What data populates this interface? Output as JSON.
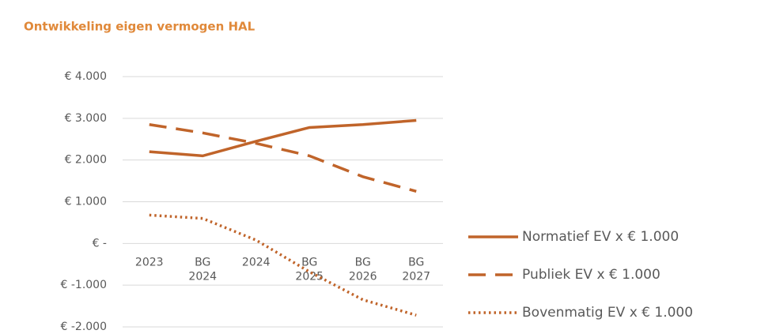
{
  "chart_data": {
    "type": "line",
    "title": "Ontwikkeling eigen vermogen  HAL",
    "categories": [
      "2023",
      "BG 2024",
      "2024",
      "BG 2025",
      "BG 2026",
      "BG 2027"
    ],
    "series": [
      {
        "name": "Normatief EV x € 1.000",
        "color": "#c0642a",
        "dash": "solid",
        "values": [
          2200,
          2100,
          2450,
          2780,
          2850,
          2950
        ]
      },
      {
        "name": "Publiek EV x € 1.000",
        "color": "#c0642a",
        "dash": "dashed",
        "values": [
          2850,
          2650,
          2400,
          2100,
          1600,
          1250
        ]
      },
      {
        "name": "Bovenmatig EV x € 1.000",
        "color": "#c0642a",
        "dash": "dotted",
        "values": [
          680,
          600,
          80,
          -680,
          -1350,
          -1720
        ]
      }
    ],
    "ylim": [
      -2000,
      4000
    ],
    "yticks": [
      {
        "value": -2000,
        "label": "€ -2.000"
      },
      {
        "value": -1000,
        "label": "€ -1.000"
      },
      {
        "value": 0,
        "label": "€ -"
      },
      {
        "value": 1000,
        "label": "€ 1.000"
      },
      {
        "value": 2000,
        "label": "€ 2.000"
      },
      {
        "value": 3000,
        "label": "€ 3.000"
      },
      {
        "value": 4000,
        "label": "€ 4.000"
      }
    ],
    "grid": true,
    "legend": "right"
  }
}
